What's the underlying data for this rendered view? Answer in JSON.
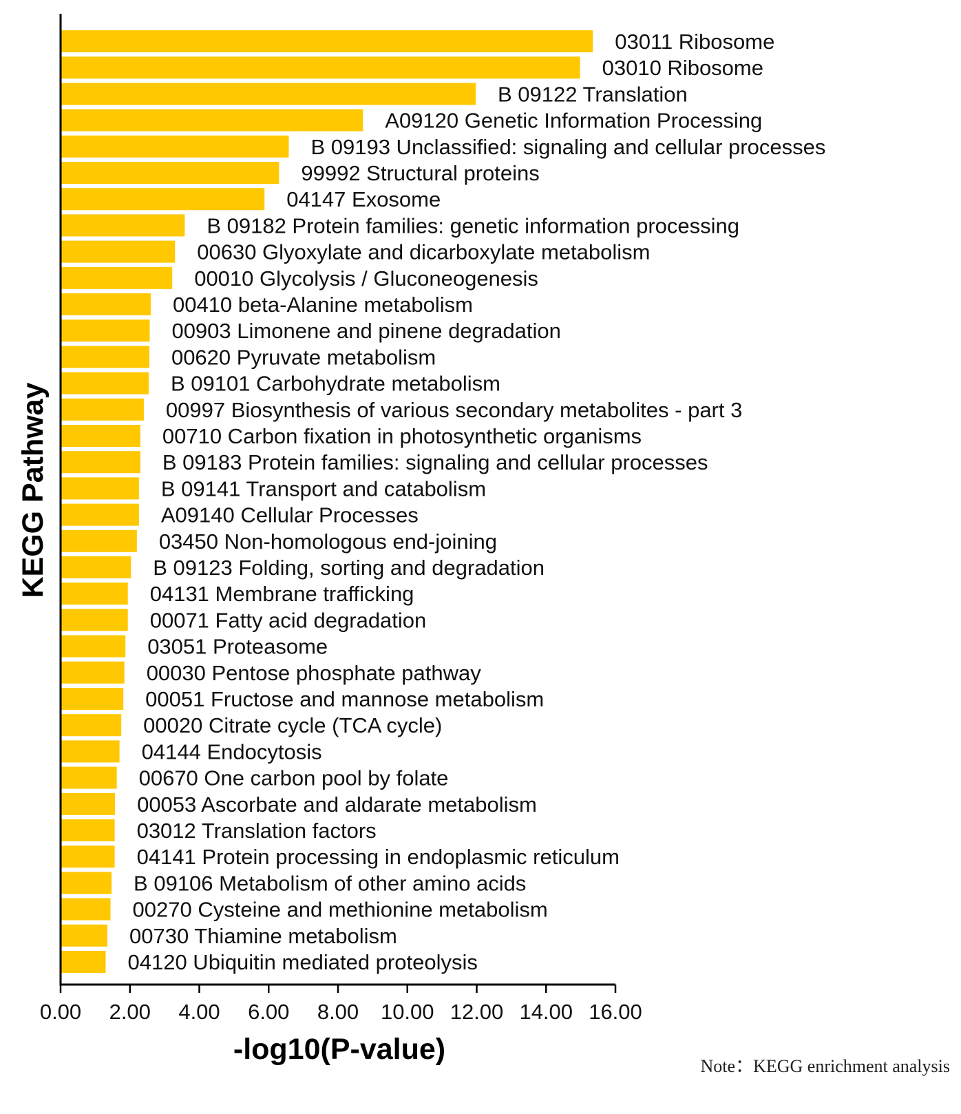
{
  "chart_data": {
    "type": "bar",
    "orientation": "horizontal",
    "title": "",
    "xlabel": "-log10(P-value)",
    "ylabel": "KEGG Pathway",
    "xlim": [
      0,
      16
    ],
    "xticks": [
      "0.00",
      "2.00",
      "4.00",
      "6.00",
      "8.00",
      "10.00",
      "12.00",
      "14.00",
      "16.00"
    ],
    "grid": false,
    "bar_color": "#FFC800",
    "categories": [
      "03011 Ribosome",
      "03010 Ribosome",
      "B  09122 Translation",
      "A09120 Genetic Information Processing",
      "B  09193 Unclassified: signaling and cellular processes",
      "99992 Structural proteins",
      "04147 Exosome",
      "B  09182 Protein families: genetic information processing",
      "00630 Glyoxylate and dicarboxylate metabolism",
      "00010 Glycolysis / Gluconeogenesis",
      "00410 beta-Alanine metabolism",
      "00903 Limonene and pinene degradation",
      "00620 Pyruvate metabolism",
      "B  09101 Carbohydrate metabolism",
      "00997 Biosynthesis of various secondary metabolites - part 3",
      "00710 Carbon fixation in photosynthetic organisms",
      "B  09183 Protein families: signaling and cellular processes",
      "B  09141 Transport and catabolism",
      "A09140 Cellular Processes",
      "03450 Non-homologous end-joining",
      "B  09123 Folding, sorting and degradation",
      "04131 Membrane trafficking",
      "00071 Fatty acid degradation",
      "03051 Proteasome",
      "00030 Pentose phosphate pathway",
      "00051 Fructose and mannose metabolism",
      "00020 Citrate cycle (TCA cycle)",
      "04144 Endocytosis",
      "00670 One carbon pool by folate",
      "00053 Ascorbate and aldarate metabolism",
      "03012 Translation factors",
      "04141 Protein processing in endoplasmic reticulum",
      "B  09106 Metabolism of other amino acids",
      "00270 Cysteine and methionine metabolism",
      "00730 Thiamine metabolism",
      "04120 Ubiquitin mediated proteolysis"
    ],
    "values": [
      15.35,
      14.98,
      11.97,
      8.72,
      6.58,
      6.3,
      5.88,
      3.58,
      3.3,
      3.22,
      2.6,
      2.57,
      2.56,
      2.54,
      2.4,
      2.3,
      2.3,
      2.26,
      2.26,
      2.2,
      2.03,
      1.94,
      1.94,
      1.87,
      1.84,
      1.81,
      1.75,
      1.7,
      1.62,
      1.57,
      1.56,
      1.56,
      1.47,
      1.44,
      1.35,
      1.3
    ]
  },
  "note": "Note：KEGG enrichment analysis"
}
